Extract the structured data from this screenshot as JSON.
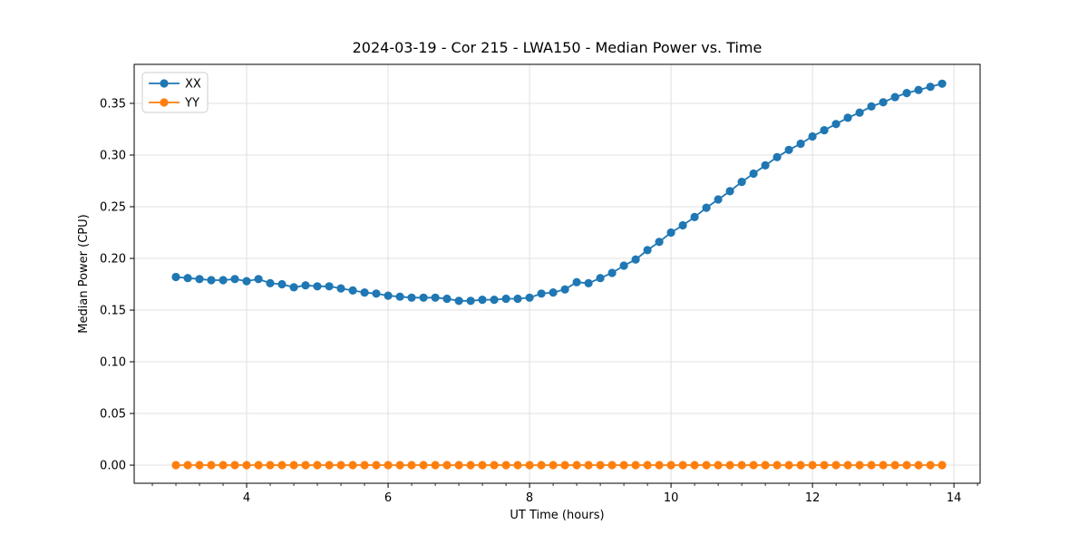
{
  "colors": {
    "background": "#ffffff",
    "grid": "#e0e0e0",
    "spine": "#000000",
    "series_xx": "#1f77b4",
    "series_yy": "#ff7f0e"
  },
  "chart_data": {
    "type": "line",
    "title": "2024-03-19 - Cor 215 - LWA150 - Median Power vs. Time",
    "xlabel": "UT Time (hours)",
    "ylabel": "Median Power (CPU)",
    "xlim": [
      2.41,
      14.37
    ],
    "ylim": [
      -0.0175,
      0.3877
    ],
    "xticks": [
      4,
      6,
      8,
      10,
      12,
      14
    ],
    "xtick_labels": [
      "4",
      "6",
      "8",
      "10",
      "12",
      "14"
    ],
    "x_minor_tick_step": 0.3333333,
    "yticks": [
      0.0,
      0.05,
      0.1,
      0.15,
      0.2,
      0.25,
      0.3,
      0.35
    ],
    "ytick_labels": [
      "0.00",
      "0.05",
      "0.10",
      "0.15",
      "0.20",
      "0.25",
      "0.30",
      "0.35"
    ],
    "grid": true,
    "legend_position": "upper-left",
    "x": [
      3.0,
      3.167,
      3.333,
      3.5,
      3.667,
      3.833,
      4.0,
      4.167,
      4.333,
      4.5,
      4.667,
      4.833,
      5.0,
      5.167,
      5.333,
      5.5,
      5.667,
      5.833,
      6.0,
      6.167,
      6.333,
      6.5,
      6.667,
      6.833,
      7.0,
      7.167,
      7.333,
      7.5,
      7.667,
      7.833,
      8.0,
      8.167,
      8.333,
      8.5,
      8.667,
      8.833,
      9.0,
      9.167,
      9.333,
      9.5,
      9.667,
      9.833,
      10.0,
      10.167,
      10.333,
      10.5,
      10.667,
      10.833,
      11.0,
      11.167,
      11.333,
      11.5,
      11.667,
      11.833,
      12.0,
      12.167,
      12.333,
      12.5,
      12.667,
      12.833,
      13.0,
      13.167,
      13.333,
      13.5,
      13.667,
      13.833
    ],
    "series": [
      {
        "name": "XX",
        "color": "#1f77b4",
        "values": [
          0.182,
          0.181,
          0.18,
          0.179,
          0.179,
          0.18,
          0.178,
          0.18,
          0.176,
          0.175,
          0.172,
          0.174,
          0.173,
          0.173,
          0.171,
          0.169,
          0.167,
          0.166,
          0.164,
          0.163,
          0.162,
          0.162,
          0.162,
          0.161,
          0.159,
          0.159,
          0.16,
          0.16,
          0.161,
          0.161,
          0.162,
          0.166,
          0.167,
          0.17,
          0.177,
          0.176,
          0.181,
          0.186,
          0.193,
          0.199,
          0.208,
          0.216,
          0.225,
          0.232,
          0.24,
          0.249,
          0.257,
          0.265,
          0.274,
          0.282,
          0.29,
          0.298,
          0.305,
          0.311,
          0.318,
          0.324,
          0.33,
          0.336,
          0.341,
          0.347,
          0.351,
          0.356,
          0.36,
          0.363,
          0.366,
          0.369
        ]
      },
      {
        "name": "YY",
        "color": "#ff7f0e",
        "values": [
          0.0,
          0.0,
          0.0,
          0.0,
          0.0,
          0.0,
          0.0,
          0.0,
          0.0,
          0.0,
          0.0,
          0.0,
          0.0,
          0.0,
          0.0,
          0.0,
          0.0,
          0.0,
          0.0,
          0.0,
          0.0,
          0.0,
          0.0,
          0.0,
          0.0,
          0.0,
          0.0,
          0.0,
          0.0,
          0.0,
          0.0,
          0.0,
          0.0,
          0.0,
          0.0,
          0.0,
          0.0,
          0.0,
          0.0,
          0.0,
          0.0,
          0.0,
          0.0,
          0.0,
          0.0,
          0.0,
          0.0,
          0.0,
          0.0,
          0.0,
          0.0,
          0.0,
          0.0,
          0.0,
          0.0,
          0.0,
          0.0,
          0.0,
          0.0,
          0.0,
          0.0,
          0.0,
          0.0,
          0.0,
          0.0,
          0.0
        ]
      }
    ]
  }
}
